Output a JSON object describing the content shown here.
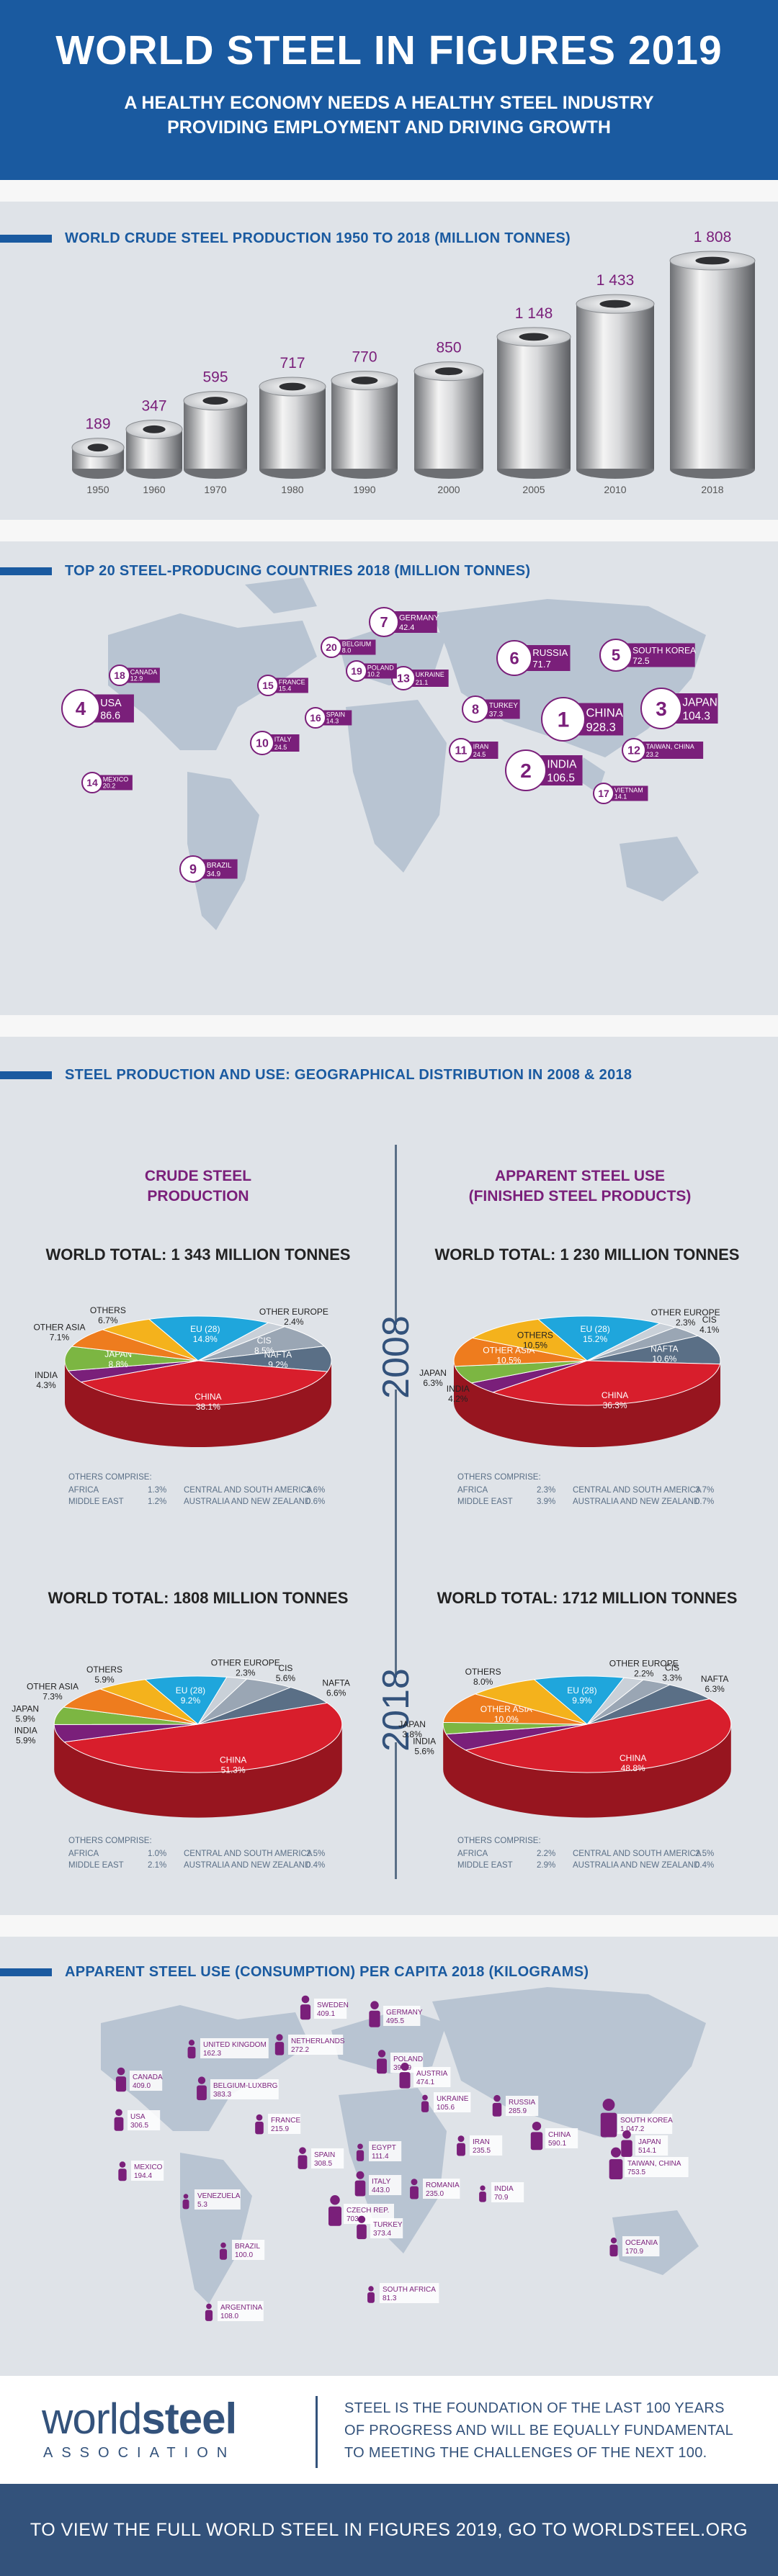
{
  "header": {
    "title": "WORLD STEEL IN FIGURES 2019",
    "subtitle1": "A HEALTHY ECONOMY NEEDS A HEALTHY STEEL INDUSTRY",
    "subtitle2": "PROVIDING EMPLOYMENT AND DRIVING GROWTH"
  },
  "section1": {
    "title": "WORLD CRUDE STEEL PRODUCTION 1950 TO 2018 (MILLION TONNES)"
  },
  "chart_data": [
    {
      "type": "bar",
      "title": "WORLD CRUDE STEEL PRODUCTION 1950 TO 2018 (MILLION TONNES)",
      "categories": [
        "1950",
        "1960",
        "1970",
        "1980",
        "1990",
        "2000",
        "2005",
        "2010",
        "2018"
      ],
      "values": [
        189,
        347,
        595,
        717,
        770,
        850,
        1148,
        1433,
        1808
      ],
      "value_labels": [
        "189",
        "347",
        "595",
        "717",
        "770",
        "850",
        "1 148",
        "1 433",
        "1 808"
      ]
    },
    {
      "type": "pie",
      "title": "WORLD TOTAL: 1 343 MILLION TONNES",
      "group": "CRUDE STEEL PRODUCTION",
      "year": "2008",
      "slices": [
        {
          "label": "EU (28)",
          "value": 14.8,
          "text": "14.8%"
        },
        {
          "label": "OTHER EUROPE",
          "value": 2.4,
          "text": "2.4%"
        },
        {
          "label": "CIS",
          "value": 8.5,
          "text": "8.5%"
        },
        {
          "label": "NAFTA",
          "value": 9.2,
          "text": "9.2%"
        },
        {
          "label": "CHINA",
          "value": 38.1,
          "text": "38.1%"
        },
        {
          "label": "INDIA",
          "value": 4.3,
          "text": "4.3%"
        },
        {
          "label": "JAPAN",
          "value": 8.8,
          "text": "8.8%"
        },
        {
          "label": "OTHER ASIA",
          "value": 7.1,
          "text": "7.1%"
        },
        {
          "label": "OTHERS",
          "value": 6.7,
          "text": "6.7%"
        }
      ],
      "others_comprise": [
        [
          "AFRICA",
          "1.3%",
          "CENTRAL AND SOUTH AMERICA",
          "3.6%"
        ],
        [
          "MIDDLE EAST",
          "1.2%",
          "AUSTRALIA AND NEW ZEALAND",
          "0.6%"
        ]
      ]
    },
    {
      "type": "pie",
      "title": "WORLD TOTAL: 1 230 MILLION TONNES",
      "group": "APPARENT STEEL USE (FINISHED STEEL PRODUCTS)",
      "year": "2008",
      "slices": [
        {
          "label": "EU (28)",
          "value": 15.2,
          "text": "15.2%"
        },
        {
          "label": "OTHER EUROPE",
          "value": 2.3,
          "text": "2.3%"
        },
        {
          "label": "CIS",
          "value": 4.1,
          "text": "4.1%"
        },
        {
          "label": "NAFTA",
          "value": 10.6,
          "text": "10.6%"
        },
        {
          "label": "CHINA",
          "value": 36.3,
          "text": "36.3%"
        },
        {
          "label": "INDIA",
          "value": 4.2,
          "text": "4.2%"
        },
        {
          "label": "JAPAN",
          "value": 6.3,
          "text": "6.3%"
        },
        {
          "label": "OTHER ASIA",
          "value": 10.5,
          "text": "10.5%"
        },
        {
          "label": "OTHERS",
          "value": 10.5,
          "text": "10.5%"
        }
      ],
      "others_comprise": [
        [
          "AFRICA",
          "2.3%",
          "CENTRAL AND SOUTH AMERICA",
          "3.7%"
        ],
        [
          "MIDDLE EAST",
          "3.9%",
          "AUSTRALIA AND NEW ZEALAND",
          "0.7%"
        ]
      ]
    },
    {
      "type": "pie",
      "title": "WORLD TOTAL: 1808 MILLION TONNES",
      "group": "CRUDE STEEL PRODUCTION",
      "year": "2018",
      "slices": [
        {
          "label": "EU (28)",
          "value": 9.2,
          "text": "9.2%"
        },
        {
          "label": "OTHER EUROPE",
          "value": 2.3,
          "text": "2.3%"
        },
        {
          "label": "CIS",
          "value": 5.6,
          "text": "5.6%"
        },
        {
          "label": "NAFTA",
          "value": 6.6,
          "text": "6.6%"
        },
        {
          "label": "CHINA",
          "value": 51.3,
          "text": "51.3%"
        },
        {
          "label": "INDIA",
          "value": 5.9,
          "text": "5.9%"
        },
        {
          "label": "JAPAN",
          "value": 5.9,
          "text": "5.9%"
        },
        {
          "label": "OTHER ASIA",
          "value": 7.3,
          "text": "7.3%"
        },
        {
          "label": "OTHERS",
          "value": 5.9,
          "text": "5.9%"
        }
      ],
      "others_comprise": [
        [
          "AFRICA",
          "1.0%",
          "CENTRAL AND SOUTH AMERICA",
          "2.5%"
        ],
        [
          "MIDDLE EAST",
          "2.1%",
          "AUSTRALIA AND NEW ZEALAND",
          "0.4%"
        ]
      ]
    },
    {
      "type": "pie",
      "title": "WORLD TOTAL: 1712 MILLION TONNES",
      "group": "APPARENT STEEL USE (FINISHED STEEL PRODUCTS)",
      "year": "2018",
      "slices": [
        {
          "label": "EU (28)",
          "value": 9.9,
          "text": "9.9%"
        },
        {
          "label": "OTHER EUROPE",
          "value": 2.2,
          "text": "2.2%"
        },
        {
          "label": "CIS",
          "value": 3.3,
          "text": "3.3%"
        },
        {
          "label": "NAFTA",
          "value": 6.3,
          "text": "6.3%"
        },
        {
          "label": "CHINA",
          "value": 48.8,
          "text": "48.8%"
        },
        {
          "label": "INDIA",
          "value": 5.6,
          "text": "5.6%"
        },
        {
          "label": "JAPAN",
          "value": 3.8,
          "text": "3.8%"
        },
        {
          "label": "OTHER ASIA",
          "value": 10.0,
          "text": "10.0%"
        },
        {
          "label": "OTHERS",
          "value": 8.0,
          "text": "8.0%"
        }
      ],
      "others_comprise": [
        [
          "AFRICA",
          "2.2%",
          "CENTRAL AND SOUTH AMERICA",
          "2.5%"
        ],
        [
          "MIDDLE EAST",
          "2.9%",
          "AUSTRALIA AND NEW ZEALAND",
          "0.4%"
        ]
      ]
    }
  ],
  "section2": {
    "title": "TOP 20 STEEL-PRODUCING COUNTRIES 2018 (MILLION TONNES)",
    "countries": [
      {
        "rank": "1",
        "name": "CHINA",
        "value": "928.3"
      },
      {
        "rank": "2",
        "name": "INDIA",
        "value": "106.5"
      },
      {
        "rank": "3",
        "name": "JAPAN",
        "value": "104.3"
      },
      {
        "rank": "4",
        "name": "USA",
        "value": "86.6"
      },
      {
        "rank": "5",
        "name": "SOUTH KOREA",
        "value": "72.5"
      },
      {
        "rank": "6",
        "name": "RUSSIA",
        "value": "71.7"
      },
      {
        "rank": "7",
        "name": "GERMANY",
        "value": "42.4"
      },
      {
        "rank": "8",
        "name": "TURKEY",
        "value": "37.3"
      },
      {
        "rank": "9",
        "name": "BRAZIL",
        "value": "34.9"
      },
      {
        "rank": "10",
        "name": "ITALY",
        "value": "24.5"
      },
      {
        "rank": "11",
        "name": "IRAN",
        "value": "24.5"
      },
      {
        "rank": "12",
        "name": "TAIWAN, CHINA",
        "value": "23.2"
      },
      {
        "rank": "13",
        "name": "UKRAINE",
        "value": "21.1"
      },
      {
        "rank": "14",
        "name": "MEXICO",
        "value": "20.2"
      },
      {
        "rank": "15",
        "name": "FRANCE",
        "value": "15.4"
      },
      {
        "rank": "16",
        "name": "SPAIN",
        "value": "14.3"
      },
      {
        "rank": "17",
        "name": "VIETNAM",
        "value": "14.1"
      },
      {
        "rank": "18",
        "name": "CANADA",
        "value": "12.9"
      },
      {
        "rank": "19",
        "name": "POLAND",
        "value": "10.2"
      },
      {
        "rank": "20",
        "name": "BELGIUM",
        "value": "8.0"
      }
    ]
  },
  "section3": {
    "title": "STEEL PRODUCTION AND USE: GEOGRAPHICAL DISTRIBUTION IN 2008 & 2018",
    "left_head_1": "CRUDE STEEL",
    "left_head_2": "PRODUCTION",
    "right_head_1": "APPARENT STEEL USE",
    "right_head_2": "(FINISHED STEEL PRODUCTS)",
    "year1": "2008",
    "year2": "2018",
    "others_label": "OTHERS COMPRISE:"
  },
  "section4": {
    "title": "APPARENT STEEL USE (CONSUMPTION) PER CAPITA 2018 (KILOGRAMS)",
    "countries": [
      {
        "name": "SWEDEN",
        "value": "409.1"
      },
      {
        "name": "GERMANY",
        "value": "495.5"
      },
      {
        "name": "NETHERLANDS",
        "value": "272.2"
      },
      {
        "name": "UNITED KINGDOM",
        "value": "162.3"
      },
      {
        "name": "POLAND",
        "value": "390.9"
      },
      {
        "name": "CANADA",
        "value": "409.0"
      },
      {
        "name": "BELGIUM-LUXBRG",
        "value": "383.3"
      },
      {
        "name": "AUSTRIA",
        "value": "474.1"
      },
      {
        "name": "USA",
        "value": "306.5"
      },
      {
        "name": "FRANCE",
        "value": "215.9"
      },
      {
        "name": "UKRAINE",
        "value": "105.6"
      },
      {
        "name": "RUSSIA",
        "value": "285.9"
      },
      {
        "name": "SOUTH KOREA",
        "value": "1 047.2"
      },
      {
        "name": "SPAIN",
        "value": "308.5"
      },
      {
        "name": "EGYPT",
        "value": "111.4"
      },
      {
        "name": "IRAN",
        "value": "235.5"
      },
      {
        "name": "CHINA",
        "value": "590.1"
      },
      {
        "name": "JAPAN",
        "value": "514.1"
      },
      {
        "name": "MEXICO",
        "value": "194.4"
      },
      {
        "name": "ITALY",
        "value": "443.0"
      },
      {
        "name": "ROMANIA",
        "value": "235.0"
      },
      {
        "name": "TAIWAN, CHINA",
        "value": "753.5"
      },
      {
        "name": "VENEZUELA",
        "value": "5.3"
      },
      {
        "name": "CZECH REP.",
        "value": "703.0"
      },
      {
        "name": "INDIA",
        "value": "70.9"
      },
      {
        "name": "TURKEY",
        "value": "373.4"
      },
      {
        "name": "BRAZIL",
        "value": "100.0"
      },
      {
        "name": "OCEANIA",
        "value": "170.9"
      },
      {
        "name": "SOUTH AFRICA",
        "value": "81.3"
      },
      {
        "name": "ARGENTINA",
        "value": "108.0"
      }
    ]
  },
  "footer": {
    "logo_word1": "world",
    "logo_word2": "steel",
    "logo_sub": "ASSOCIATION",
    "tagline1": "STEEL IS THE FOUNDATION OF THE LAST 100 YEARS",
    "tagline2": "OF PROGRESS AND WILL BE EQUALLY FUNDAMENTAL",
    "tagline3": "TO MEETING THE CHALLENGES OF THE NEXT 100.",
    "cta": "TO VIEW THE FULL WORLD STEEL IN FIGURES 2019, GO TO WORLDSTEEL.ORG"
  },
  "colors": {
    "brand_blue": "#1a5aa0",
    "purple": "#7a1f7a",
    "china_red": "#d81e2c",
    "eu_blue": "#1fa6dc",
    "others_yellow": "#f4b21c",
    "other_asia_orange": "#ee7c1e",
    "japan_green": "#7cb642",
    "nafta_slate": "#5a6f86",
    "cis_grey": "#9aa6b4"
  }
}
